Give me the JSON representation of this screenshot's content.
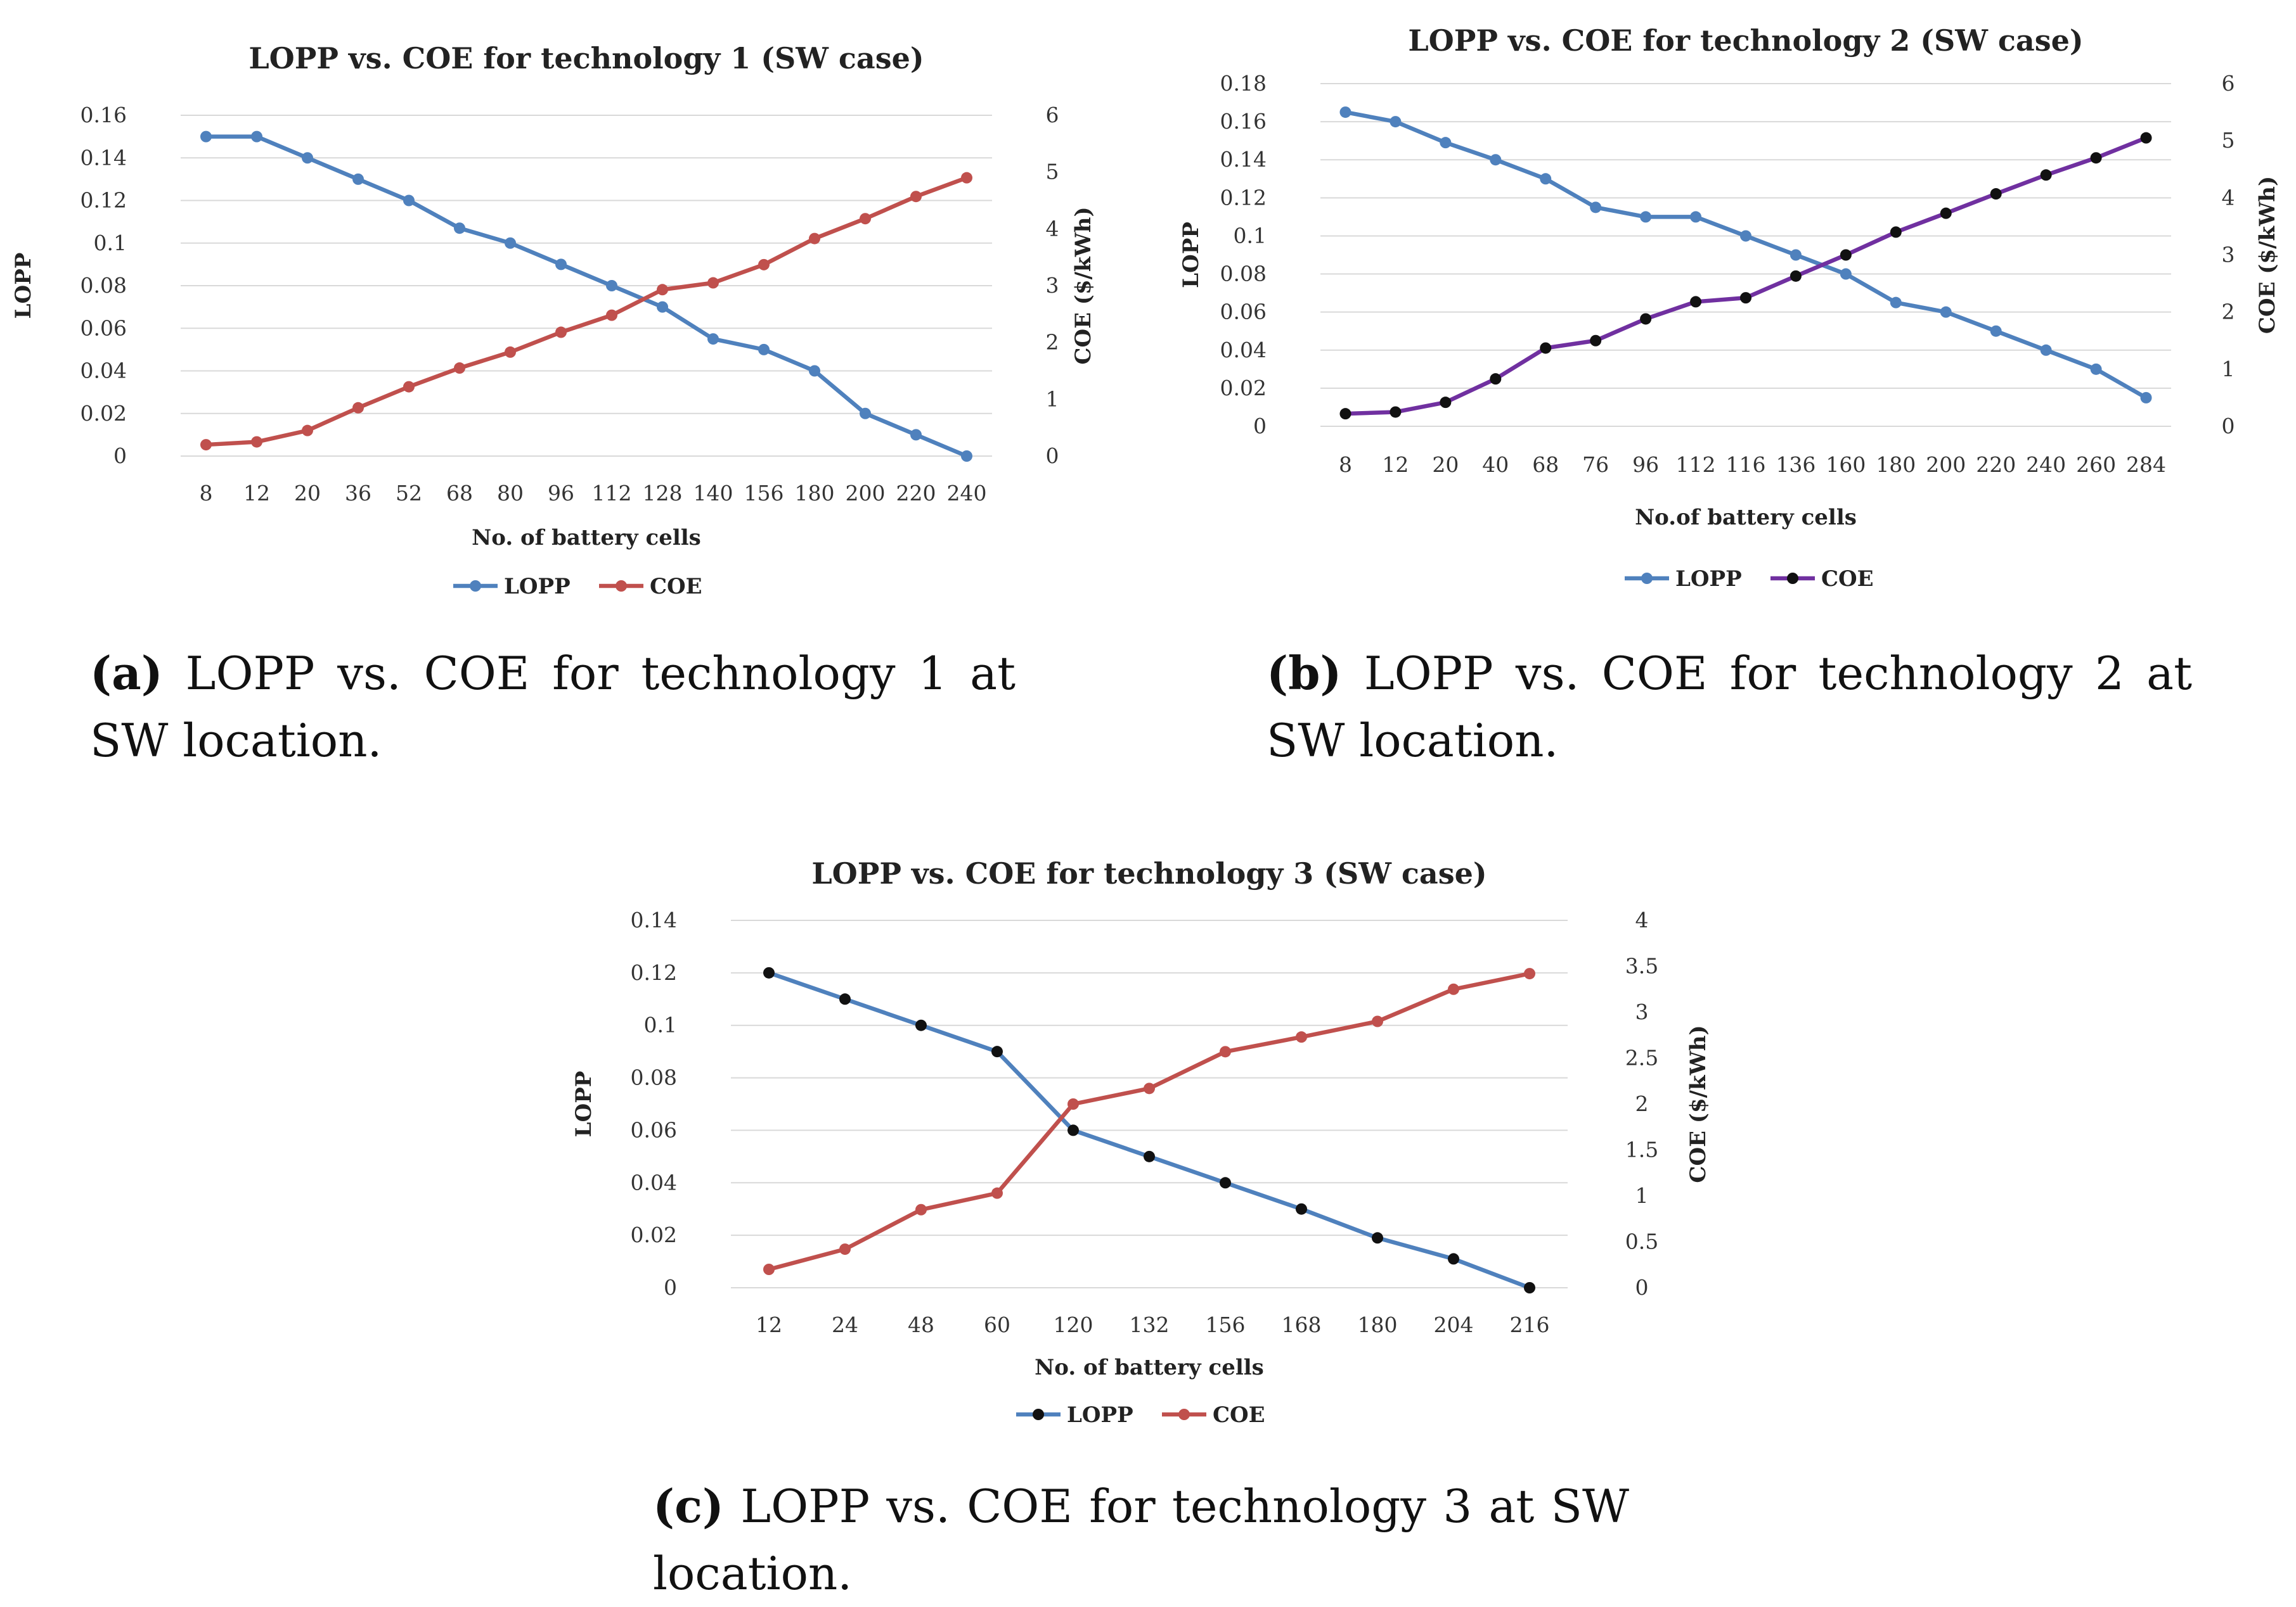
{
  "chart_data": [
    {
      "id": "a",
      "type": "line",
      "title": "LOPP vs. COE for technology 1 (SW case)",
      "xlabel": "No. of battery cells",
      "ylabel": "LOPP",
      "y2label": "COE ($/kWh)",
      "categories": [
        "8",
        "12",
        "20",
        "36",
        "52",
        "68",
        "80",
        "96",
        "112",
        "128",
        "140",
        "156",
        "180",
        "200",
        "220",
        "240"
      ],
      "ylim": [
        0,
        0.16
      ],
      "yticks": [
        "0",
        "0.02",
        "0.04",
        "0.06",
        "0.08",
        "0.1",
        "0.12",
        "0.14",
        "0.16"
      ],
      "y2lim": [
        0,
        6
      ],
      "y2ticks": [
        "0",
        "1",
        "2",
        "3",
        "4",
        "5",
        "6"
      ],
      "series": [
        {
          "name": "LOPP",
          "axis": "left",
          "color": "#4f81bd",
          "marker": "#4f81bd",
          "values": [
            0.15,
            0.15,
            0.14,
            0.13,
            0.12,
            0.107,
            0.1,
            0.09,
            0.08,
            0.07,
            0.055,
            0.05,
            0.04,
            0.02,
            0.01,
            0.0
          ]
        },
        {
          "name": "COE",
          "axis": "right",
          "color": "#c0504d",
          "marker": "#c0504d",
          "values": [
            0.2,
            0.25,
            0.45,
            0.85,
            1.22,
            1.55,
            1.83,
            2.18,
            2.48,
            2.93,
            3.05,
            3.37,
            3.83,
            4.18,
            4.57,
            4.9
          ]
        }
      ],
      "legend": "bottom"
    },
    {
      "id": "b",
      "type": "line",
      "title": "LOPP vs. COE for technology 2 (SW case)",
      "xlabel": "No.of battery cells",
      "ylabel": "LOPP",
      "y2label": "COE ($/kWh)",
      "categories": [
        "8",
        "12",
        "20",
        "40",
        "68",
        "76",
        "96",
        "112",
        "116",
        "136",
        "160",
        "180",
        "200",
        "220",
        "240",
        "260",
        "284"
      ],
      "ylim": [
        0,
        0.18
      ],
      "yticks": [
        "0",
        "0.02",
        "0.04",
        "0.06",
        "0.08",
        "0.1",
        "0.12",
        "0.14",
        "0.16",
        "0.18"
      ],
      "y2lim": [
        0,
        6
      ],
      "y2ticks": [
        "0",
        "1",
        "2",
        "3",
        "4",
        "5",
        "6"
      ],
      "series": [
        {
          "name": "LOPP",
          "axis": "left",
          "color": "#4f81bd",
          "marker": "#4f81bd",
          "values": [
            0.165,
            0.16,
            0.149,
            0.14,
            0.13,
            0.115,
            0.11,
            0.11,
            0.1,
            0.09,
            0.08,
            0.065,
            0.06,
            0.05,
            0.04,
            0.03,
            0.015
          ]
        },
        {
          "name": "COE",
          "axis": "right",
          "color": "#7030a0",
          "marker": "#111111",
          "values": [
            0.22,
            0.25,
            0.42,
            0.83,
            1.37,
            1.5,
            1.88,
            2.18,
            2.25,
            2.63,
            3.0,
            3.4,
            3.73,
            4.07,
            4.4,
            4.7,
            5.05
          ]
        }
      ],
      "legend": "bottom"
    },
    {
      "id": "c",
      "type": "line",
      "title": "LOPP vs. COE for technology 3 (SW case)",
      "xlabel": "No. of battery cells",
      "ylabel": "LOPP",
      "y2label": "COE ($/kWh)",
      "categories": [
        "12",
        "24",
        "48",
        "60",
        "120",
        "132",
        "156",
        "168",
        "180",
        "204",
        "216"
      ],
      "ylim": [
        0,
        0.14
      ],
      "yticks": [
        "0",
        "0.02",
        "0.04",
        "0.06",
        "0.08",
        "0.1",
        "0.12",
        "0.14"
      ],
      "y2lim": [
        0,
        4
      ],
      "y2ticks": [
        "0",
        "0.5",
        "1",
        "1.5",
        "2",
        "2.5",
        "3",
        "3.5",
        "4"
      ],
      "series": [
        {
          "name": "LOPP",
          "axis": "left",
          "color": "#4f81bd",
          "marker": "#111111",
          "values": [
            0.12,
            0.11,
            0.1,
            0.09,
            0.06,
            0.05,
            0.04,
            0.03,
            0.019,
            0.011,
            0.0
          ]
        },
        {
          "name": "COE",
          "axis": "right",
          "color": "#c0504d",
          "marker": "#c0504d",
          "values": [
            0.2,
            0.42,
            0.85,
            1.03,
            2.0,
            2.17,
            2.57,
            2.73,
            2.9,
            3.25,
            3.42
          ]
        }
      ],
      "legend": "bottom"
    }
  ],
  "captions": {
    "a": {
      "label": "(a)",
      "text": "LOPP vs.  COE for technology 1 at SW location."
    },
    "b": {
      "label": "(b)",
      "text": "LOPP vs.  COE for technology 2 at SW location."
    },
    "c": {
      "label": "(c)",
      "text": "LOPP vs.  COE for technology 3 at SW location."
    }
  }
}
